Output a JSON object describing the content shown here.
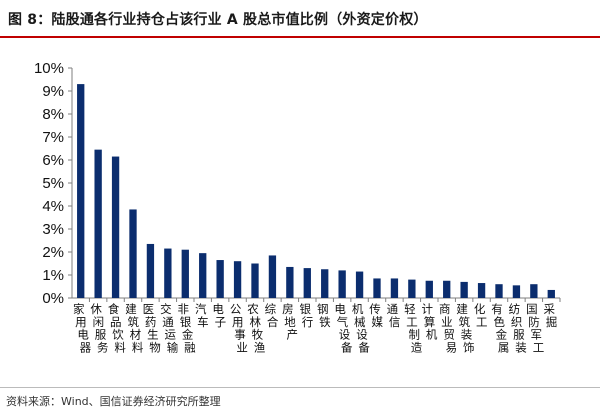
{
  "title": "图 8：陆股通各行业持仓占该行业 A 股总市值比例（外资定价权）",
  "source": "资料来源：Wind、国信证券经济研究所整理",
  "chart_data": {
    "type": "bar",
    "categories": [
      "家用电器",
      "休闲服务",
      "食品饮料",
      "建筑材料",
      "医药生物",
      "交通运输",
      "非银金融",
      "汽车",
      "电子",
      "公用事业",
      "农林牧渔",
      "综合",
      "房地产",
      "银行",
      "钢铁",
      "电气设备",
      "机械设备",
      "传媒",
      "通信",
      "轻工制造",
      "计算机",
      "商业贸易",
      "建筑装饰",
      "化工",
      "有色金属",
      "纺织服装",
      "国防军工",
      "采掘"
    ],
    "values": [
      9.3,
      6.45,
      6.15,
      3.85,
      2.35,
      2.15,
      2.1,
      1.95,
      1.65,
      1.6,
      1.5,
      1.85,
      1.35,
      1.3,
      1.25,
      1.2,
      1.15,
      0.85,
      0.85,
      0.8,
      0.75,
      0.75,
      0.7,
      0.65,
      0.6,
      0.55,
      0.6,
      0.35
    ],
    "ylim": [
      0,
      10
    ],
    "yticks": [
      "0%",
      "1%",
      "2%",
      "3%",
      "4%",
      "5%",
      "6%",
      "7%",
      "8%",
      "9%",
      "10%"
    ],
    "bar_color": "#0b2d6e",
    "grid": false
  }
}
